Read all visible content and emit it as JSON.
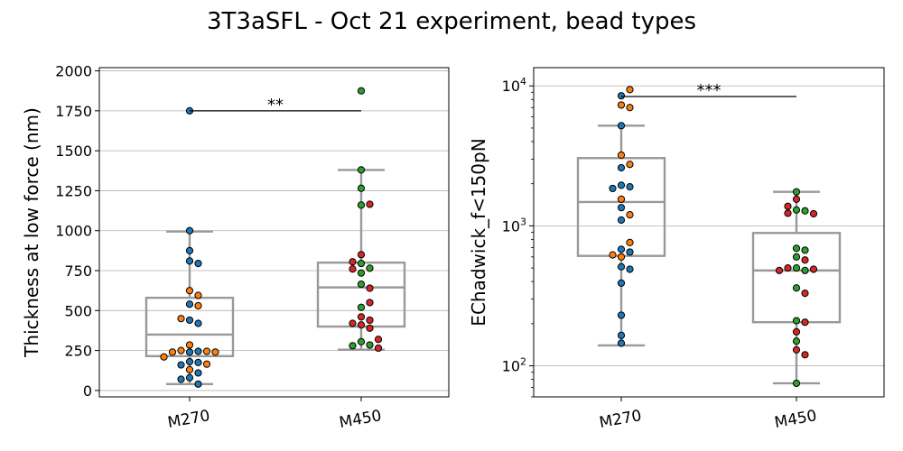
{
  "figure": {
    "title": "3T3aSFL - Oct 21 experiment, bead types"
  },
  "colors": {
    "blue": "#1f77b4",
    "orange": "#ff7f0e",
    "green": "#2ca02c",
    "red": "#d62728",
    "box": "#999999",
    "grid": "#b0b0b0"
  },
  "chart_data": [
    {
      "type": "box+swarm",
      "title": "",
      "xlabel": "",
      "ylabel": "Thickness at low force (nm)",
      "yscale": "linear",
      "ylim": [
        -40,
        2020
      ],
      "yticks": [
        0,
        250,
        500,
        750,
        1000,
        1250,
        1500,
        1750,
        2000
      ],
      "ytick_labels": [
        "0",
        "250",
        "500",
        "750",
        "1000",
        "1250",
        "1500",
        "1750",
        "2000"
      ],
      "categories": [
        "M270",
        "M450"
      ],
      "grid": "horizontal",
      "boxes": [
        {
          "category": "M270",
          "whisker_low": 40,
          "q1": 215,
          "median": 350,
          "q3": 580,
          "whisker_high": 995
        },
        {
          "category": "M450",
          "whisker_low": 255,
          "q1": 400,
          "median": 645,
          "q3": 800,
          "whisker_high": 1380
        }
      ],
      "points": [
        {
          "category": "M270",
          "values": [
            1750,
            1000,
            875,
            810,
            795,
            540,
            440,
            420,
            80,
            40,
            180,
            175,
            160,
            240,
            245,
            110,
            70
          ],
          "color": "blue"
        },
        {
          "category": "M270",
          "values": [
            625,
            595,
            530,
            450,
            285,
            250,
            245,
            240,
            240,
            210,
            165,
            130
          ],
          "color": "orange"
        },
        {
          "category": "M450",
          "values": [
            1875,
            1380,
            1265,
            1160,
            795,
            765,
            735,
            665,
            520,
            305,
            285,
            280
          ],
          "color": "green"
        },
        {
          "category": "M450",
          "values": [
            1165,
            850,
            805,
            760,
            640,
            550,
            460,
            440,
            420,
            410,
            390,
            320,
            265
          ],
          "color": "red"
        }
      ],
      "significance": {
        "label": "**",
        "from": "M270",
        "to": "M450",
        "y": 1750
      }
    },
    {
      "type": "box+swarm",
      "title": "",
      "xlabel": "",
      "ylabel": "EChadwick_f<150pN",
      "yscale": "log",
      "ylim": [
        60,
        13500
      ],
      "yticks": [
        100,
        1000,
        10000
      ],
      "ytick_labels": [
        "10",
        "10",
        "10"
      ],
      "ytick_exponents": [
        "2",
        "3",
        "4"
      ],
      "categories": [
        "M270",
        "M450"
      ],
      "grid": "horizontal",
      "boxes": [
        {
          "category": "M270",
          "whisker_low": 140,
          "q1": 610,
          "median": 1480,
          "q3": 3050,
          "whisker_high": 5200
        },
        {
          "category": "M450",
          "whisker_low": 75,
          "q1": 205,
          "median": 480,
          "q3": 890,
          "whisker_high": 1750
        }
      ],
      "points": [
        {
          "category": "M270",
          "values": [
            8500,
            5200,
            2600,
            1950,
            1900,
            1850,
            1350,
            1100,
            680,
            650,
            510,
            490,
            390,
            230,
            165,
            145
          ],
          "color": "blue"
        },
        {
          "category": "M270",
          "values": [
            9400,
            7300,
            7000,
            3200,
            2750,
            1550,
            1200,
            760,
            620,
            600
          ],
          "color": "orange"
        },
        {
          "category": "M450",
          "values": [
            1750,
            1300,
            1280,
            690,
            670,
            600,
            500,
            480,
            360,
            210,
            150,
            75
          ],
          "color": "green"
        },
        {
          "category": "M450",
          "values": [
            1550,
            1380,
            1230,
            1220,
            570,
            500,
            490,
            480,
            330,
            205,
            175,
            130,
            120
          ],
          "color": "red"
        }
      ],
      "significance": {
        "label": "***",
        "from": "M270",
        "to": "M450",
        "y": 8400
      }
    }
  ]
}
